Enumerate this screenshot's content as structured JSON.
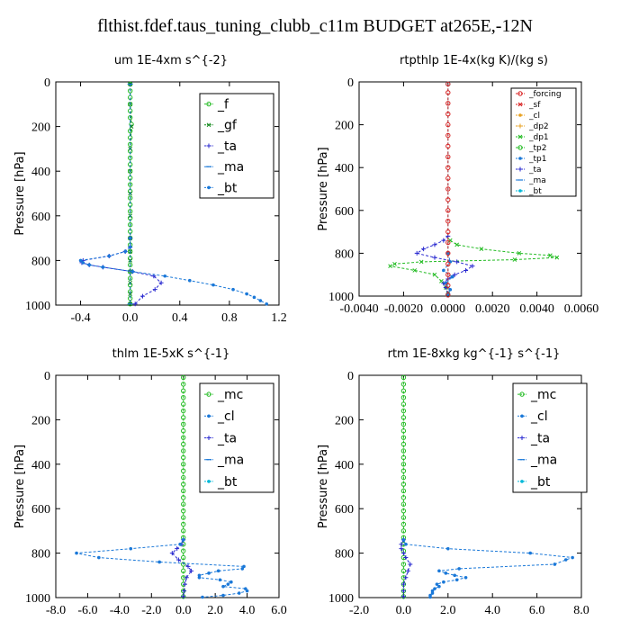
{
  "title": "flthist.fdef.taus_tuning_clubb_c11m  BUDGET at265E,-12N",
  "colors": {
    "green": "#22bb22",
    "cyan": "#00b8d8",
    "blue": "#1a78d8",
    "navy": "#2828d0",
    "red": "#d82020",
    "orange": "#e8a020",
    "dkgreen": "#10881a"
  },
  "chart_data": [
    {
      "type": "line",
      "title": "um  1E-4xm s^{-2}",
      "ylabel": "Pressure [hPa]",
      "xlim": [
        -0.6,
        1.2
      ],
      "ylim": [
        1000,
        0
      ],
      "xticks": [
        "-0.4",
        "0.0",
        "0.4",
        "0.8",
        "1.2"
      ],
      "xtick_vals": [
        -0.4,
        0,
        0.4,
        0.8,
        1.2
      ],
      "yticks": [
        "0",
        "200",
        "400",
        "600",
        "800",
        "1000"
      ],
      "ytick_vals": [
        0,
        200,
        400,
        600,
        800,
        1000
      ],
      "legend": [
        "_f",
        "_gf",
        "_ta",
        "_ma",
        "_bt"
      ],
      "series": [
        {
          "name": "_f",
          "color": "#22bb22",
          "marker": "o",
          "p": [
            10,
            40,
            70,
            100,
            130,
            160,
            190,
            220,
            250,
            280,
            310,
            340,
            370,
            400,
            430,
            460,
            490,
            520,
            550,
            580,
            610,
            640,
            670,
            700,
            730,
            760,
            790,
            820,
            850,
            880,
            910,
            940,
            970,
            995
          ],
          "v": [
            0,
            0,
            0,
            0,
            0,
            0,
            0.01,
            0,
            0,
            0,
            0,
            0,
            0,
            0,
            0,
            0,
            0,
            0,
            0,
            0,
            0,
            0,
            0,
            0,
            0,
            0,
            0,
            0,
            0,
            0,
            0,
            0,
            0,
            0
          ]
        },
        {
          "name": "_gf",
          "color": "#10881a",
          "marker": "x",
          "p": [
            10,
            100,
            200,
            300,
            400,
            500,
            600,
            700,
            760,
            800,
            850,
            900,
            950,
            995
          ],
          "v": [
            0,
            0,
            0.01,
            0,
            0,
            0,
            0,
            0,
            0,
            0,
            0,
            0,
            0,
            0
          ]
        },
        {
          "name": "_ta",
          "color": "#2828d0",
          "marker": "+",
          "p": [
            700,
            740,
            760,
            780,
            800,
            810,
            820,
            830,
            850,
            870,
            900,
            930,
            960,
            995
          ],
          "v": [
            0,
            0,
            -0.04,
            -0.17,
            -0.38,
            -0.39,
            -0.33,
            -0.22,
            0.02,
            0.19,
            0.25,
            0.2,
            0.1,
            0.04
          ]
        },
        {
          "name": "_ma",
          "color": "#1a78d8",
          "marker": "-",
          "p": [
            10,
            995
          ],
          "v": [
            0,
            0
          ]
        },
        {
          "name": "_bt",
          "color": "#1a78d8",
          "marker": "*",
          "p": [
            700,
            740,
            760,
            780,
            800,
            810,
            820,
            830,
            850,
            870,
            890,
            910,
            930,
            950,
            965,
            980,
            995
          ],
          "v": [
            0,
            0,
            -0.04,
            -0.17,
            -0.4,
            -0.38,
            -0.33,
            -0.22,
            0.02,
            0.28,
            0.48,
            0.67,
            0.83,
            0.94,
            1.0,
            1.05,
            1.1
          ]
        }
      ]
    },
    {
      "type": "line",
      "title": "rtpthlp  1E-4x(kg K)/(kg s)",
      "ylabel": "Pressure [hPa]",
      "xlim": [
        -0.004,
        0.006
      ],
      "ylim": [
        1000,
        0
      ],
      "xticks": [
        "-0.0040",
        "-0.0020",
        "0.0000",
        "0.0020",
        "0.0040",
        "0.0060"
      ],
      "xtick_vals": [
        -0.004,
        -0.002,
        0,
        0.002,
        0.004,
        0.006
      ],
      "yticks": [
        "0",
        "200",
        "400",
        "600",
        "800",
        "1000"
      ],
      "ytick_vals": [
        0,
        200,
        400,
        600,
        800,
        1000
      ],
      "legend": [
        "_forcing",
        "_sf",
        "_cl",
        "_dp2",
        "_dp1",
        "_tp2",
        "_tp1",
        "_ta",
        "_ma",
        "_bt"
      ],
      "series": [
        {
          "name": "_tp2",
          "color": "#22bb22",
          "marker": "x",
          "p": [
            740,
            760,
            780,
            800,
            810,
            820,
            830,
            840,
            850,
            860,
            880,
            900,
            930,
            960,
            990
          ],
          "v": [
            0.0001,
            0.0004,
            0.0015,
            0.0032,
            0.0046,
            0.0049,
            0.003,
            -0.0012,
            -0.0024,
            -0.0026,
            -0.0015,
            -0.0006,
            -0.0003,
            -0.0001,
            0
          ]
        },
        {
          "name": "_ta",
          "color": "#2828d0",
          "marker": "+",
          "p": [
            720,
            740,
            760,
            780,
            800,
            820,
            840,
            860,
            880,
            900,
            920,
            940,
            960,
            990
          ],
          "v": [
            0,
            -0.0002,
            -0.0006,
            -0.0011,
            -0.0014,
            -0.0006,
            0.0004,
            0.0011,
            0.0008,
            0.0003,
            0,
            -0.0002,
            -0.0001,
            0
          ]
        },
        {
          "name": "_tp1",
          "color": "#1a78d8",
          "marker": "*",
          "p": [
            800,
            840,
            880,
            910,
            940,
            970,
            990
          ],
          "v": [
            0,
            0.0001,
            -0.0002,
            0.0002,
            -0.0001,
            0.0001,
            0
          ]
        },
        {
          "name": "_bt",
          "color": "#00b8d8",
          "marker": "o",
          "p": [
            10,
            995
          ],
          "v": [
            0,
            0
          ]
        },
        {
          "name": "_forcing",
          "color": "#d82020",
          "marker": "o",
          "p": [
            10,
            50,
            100,
            150,
            200,
            250,
            300,
            350,
            400,
            450,
            500,
            550,
            600,
            650,
            700,
            750,
            800,
            850,
            900,
            950,
            995
          ],
          "v": [
            0,
            0,
            0,
            0,
            0,
            0,
            0,
            0,
            0,
            0,
            0,
            0,
            0,
            0,
            0,
            0,
            0,
            0,
            0,
            0,
            0
          ]
        }
      ]
    },
    {
      "type": "line",
      "title": "thlm  1E-5xK s^{-1}",
      "ylabel": "Pressure [hPa]",
      "xlim": [
        -8,
        6
      ],
      "ylim": [
        1000,
        0
      ],
      "xticks": [
        "-8.0",
        "-6.0",
        "-4.0",
        "-2.0",
        "0.0",
        "2.0",
        "4.0",
        "6.0"
      ],
      "xtick_vals": [
        -8,
        -6,
        -4,
        -2,
        0,
        2,
        4,
        6
      ],
      "yticks": [
        "0",
        "200",
        "400",
        "600",
        "800",
        "1000"
      ],
      "ytick_vals": [
        0,
        200,
        400,
        600,
        800,
        1000
      ],
      "legend": [
        "_mc",
        "_cl",
        "_ta",
        "_ma",
        "_bt"
      ],
      "series": [
        {
          "name": "_mc",
          "color": "#22bb22",
          "marker": "o",
          "p": [
            10,
            40,
            70,
            100,
            130,
            160,
            190,
            220,
            250,
            280,
            310,
            340,
            370,
            400,
            430,
            460,
            490,
            520,
            550,
            580,
            610,
            640,
            670,
            700,
            730,
            760,
            790,
            820,
            850,
            880,
            910,
            940,
            970,
            995
          ],
          "v": [
            0,
            0,
            0,
            0,
            0,
            0,
            0,
            0,
            0,
            0,
            0,
            0,
            0,
            0,
            0,
            0,
            0,
            0,
            0,
            0,
            0,
            0,
            0,
            0,
            0,
            0,
            0,
            0,
            0,
            0,
            0,
            0,
            0,
            0
          ]
        },
        {
          "name": "_ta",
          "color": "#2828d0",
          "marker": "+",
          "p": [
            740,
            760,
            780,
            800,
            830,
            860,
            880,
            910,
            940,
            970,
            995
          ],
          "v": [
            0,
            -0.1,
            -0.4,
            -0.7,
            -0.3,
            0.3,
            0.5,
            0.2,
            0.1,
            0.05,
            0
          ]
        },
        {
          "name": "_cl",
          "color": "#1a78d8",
          "marker": "*",
          "p": [
            740,
            760,
            780,
            800,
            820,
            840,
            860,
            870,
            880,
            890,
            900,
            910,
            920,
            930,
            940,
            950,
            960,
            970,
            980,
            990,
            998
          ],
          "v": [
            0,
            -0.2,
            -3.3,
            -6.7,
            -5.3,
            -1.5,
            3.8,
            3.7,
            2.2,
            1.6,
            1.0,
            1.0,
            2.3,
            3.0,
            2.8,
            2.5,
            3.9,
            4.0,
            3.5,
            2.5,
            1.2
          ]
        }
      ]
    },
    {
      "type": "line",
      "title": "rtm  1E-8xkg kg^{-1} s^{-1}",
      "ylabel": "Pressure [hPa]",
      "xlim": [
        -2,
        8
      ],
      "ylim": [
        1000,
        0
      ],
      "xticks": [
        "-2.0",
        "0.0",
        "2.0",
        "4.0",
        "6.0",
        "8.0"
      ],
      "xtick_vals": [
        -2,
        0,
        2,
        4,
        6,
        8
      ],
      "yticks": [
        "0",
        "200",
        "400",
        "600",
        "800",
        "1000"
      ],
      "ytick_vals": [
        0,
        200,
        400,
        600,
        800,
        1000
      ],
      "legend": [
        "_mc",
        "_cl",
        "_ta",
        "_ma",
        "_bt"
      ],
      "series": [
        {
          "name": "_mc",
          "color": "#22bb22",
          "marker": "o",
          "p": [
            10,
            40,
            70,
            100,
            130,
            160,
            190,
            220,
            250,
            280,
            310,
            340,
            370,
            400,
            430,
            460,
            490,
            520,
            550,
            580,
            610,
            640,
            670,
            700,
            730,
            760,
            790,
            820,
            850,
            880,
            910,
            940,
            970,
            995
          ],
          "v": [
            0,
            0,
            0,
            0,
            0,
            0,
            0,
            0,
            0,
            0,
            0,
            0,
            0,
            0,
            0,
            0,
            0,
            0,
            0,
            0,
            0,
            0,
            0,
            0,
            0,
            0,
            0,
            0,
            0,
            0,
            0,
            0,
            0,
            0
          ]
        },
        {
          "name": "_ta",
          "color": "#2828d0",
          "marker": "+",
          "p": [
            740,
            760,
            780,
            800,
            820,
            850,
            880,
            910,
            940,
            970,
            995
          ],
          "v": [
            0,
            -0.1,
            -0.1,
            0,
            0.1,
            0.3,
            0.2,
            0.1,
            0,
            0,
            0
          ]
        },
        {
          "name": "_cl",
          "color": "#1a78d8",
          "marker": "*",
          "p": [
            740,
            760,
            780,
            800,
            820,
            830,
            850,
            870,
            880,
            890,
            900,
            910,
            920,
            930,
            940,
            950,
            960,
            970,
            980,
            990,
            998
          ],
          "v": [
            0,
            0.1,
            2.0,
            5.7,
            7.6,
            7.3,
            6.8,
            2.5,
            1.6,
            1.9,
            2.3,
            2.8,
            2.4,
            1.8,
            1.5,
            1.6,
            1.4,
            1.3,
            1.3,
            1.2,
            1.2
          ]
        }
      ]
    }
  ]
}
